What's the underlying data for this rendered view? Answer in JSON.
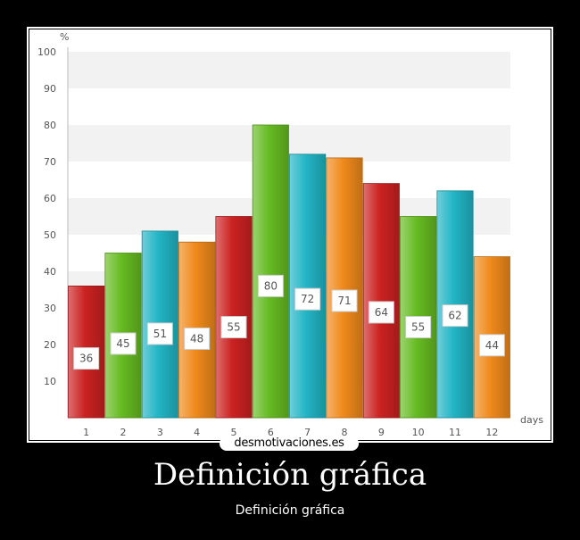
{
  "watermark": "desmotivaciones.es",
  "title": "Definición gráfica",
  "subtitle": "Definición gráfica",
  "chart_data": {
    "type": "bar",
    "categories": [
      "1",
      "2",
      "3",
      "4",
      "5",
      "6",
      "7",
      "8",
      "9",
      "10",
      "11",
      "12"
    ],
    "values": [
      36,
      45,
      51,
      48,
      55,
      80,
      72,
      71,
      64,
      55,
      62,
      44
    ],
    "data_labels": [
      "36",
      "45",
      "51",
      "48",
      "55",
      "80",
      "72",
      "71",
      "64",
      "55",
      "62",
      "44"
    ],
    "ylabel": "%",
    "xlabel": "days",
    "ylim": [
      0,
      100
    ],
    "yticks": [
      10,
      20,
      30,
      40,
      50,
      60,
      70,
      80,
      90,
      100
    ],
    "grid": "horizontal bands",
    "bar_colors": [
      "#cc2222",
      "#66bb22",
      "#22b5c5",
      "#f08a1c",
      "#cc2222",
      "#66bb22",
      "#22b5c5",
      "#f08a1c",
      "#cc2222",
      "#66bb22",
      "#22b5c5",
      "#f08a1c"
    ]
  }
}
